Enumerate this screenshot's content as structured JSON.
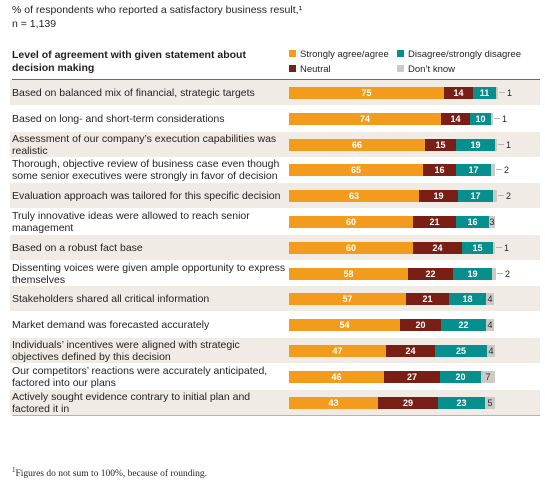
{
  "header": {
    "subtitle": "% of respondents who reported a satisfactory business result,¹",
    "n_label": "n = 1,139",
    "column_header": "Level of agreement with given statement about decision making"
  },
  "legend": {
    "items": [
      {
        "key": "agree",
        "label": "Strongly agree/agree",
        "color": "#f29b1d"
      },
      {
        "key": "disagree",
        "label": "Disagree/strongly disagree",
        "color": "#078f8d"
      },
      {
        "key": "neutral",
        "label": "Neutral",
        "color": "#7a1f16"
      },
      {
        "key": "dk",
        "label": "Don’t know",
        "color": "#cdcac6"
      }
    ]
  },
  "footnote": "Figures do not sum to 100%, because of rounding.",
  "chart_data": {
    "type": "bar",
    "stacked": true,
    "orientation": "horizontal",
    "xlim": [
      0,
      100
    ],
    "categories": [
      "Based on balanced mix of financial, strategic targets",
      "Based on long- and short-term considerations",
      "Assessment of our company’s execution capabilities was realistic",
      "Thorough, objective review of business case even though some senior executives were strongly in favor of decision",
      "Evaluation approach was tailored for this specific decision",
      "Truly innovative ideas were allowed to reach senior management",
      "Based on a robust fact base",
      "Dissenting voices were given ample opportunity to express themselves",
      "Stakeholders shared all critical information",
      "Market demand was forecasted accurately",
      "Individuals’ incentives were aligned with strategic objectives defined by this decision",
      "Our competitors’ reactions were accurately anticipated, factored into our plans",
      "Actively sought evidence contrary to initial plan and factored it in"
    ],
    "series": [
      {
        "name": "Strongly agree/agree",
        "values": [
          75,
          74,
          66,
          65,
          63,
          60,
          60,
          58,
          57,
          54,
          47,
          46,
          43
        ]
      },
      {
        "name": "Neutral",
        "values": [
          14,
          14,
          15,
          16,
          19,
          21,
          24,
          22,
          21,
          20,
          24,
          27,
          29
        ]
      },
      {
        "name": "Disagree/strongly disagree",
        "values": [
          11,
          10,
          19,
          17,
          17,
          16,
          15,
          19,
          18,
          22,
          25,
          20,
          23
        ]
      },
      {
        "name": "Don’t know",
        "values": [
          1,
          1,
          1,
          2,
          2,
          3,
          1,
          2,
          4,
          4,
          4,
          7,
          5
        ]
      }
    ]
  }
}
